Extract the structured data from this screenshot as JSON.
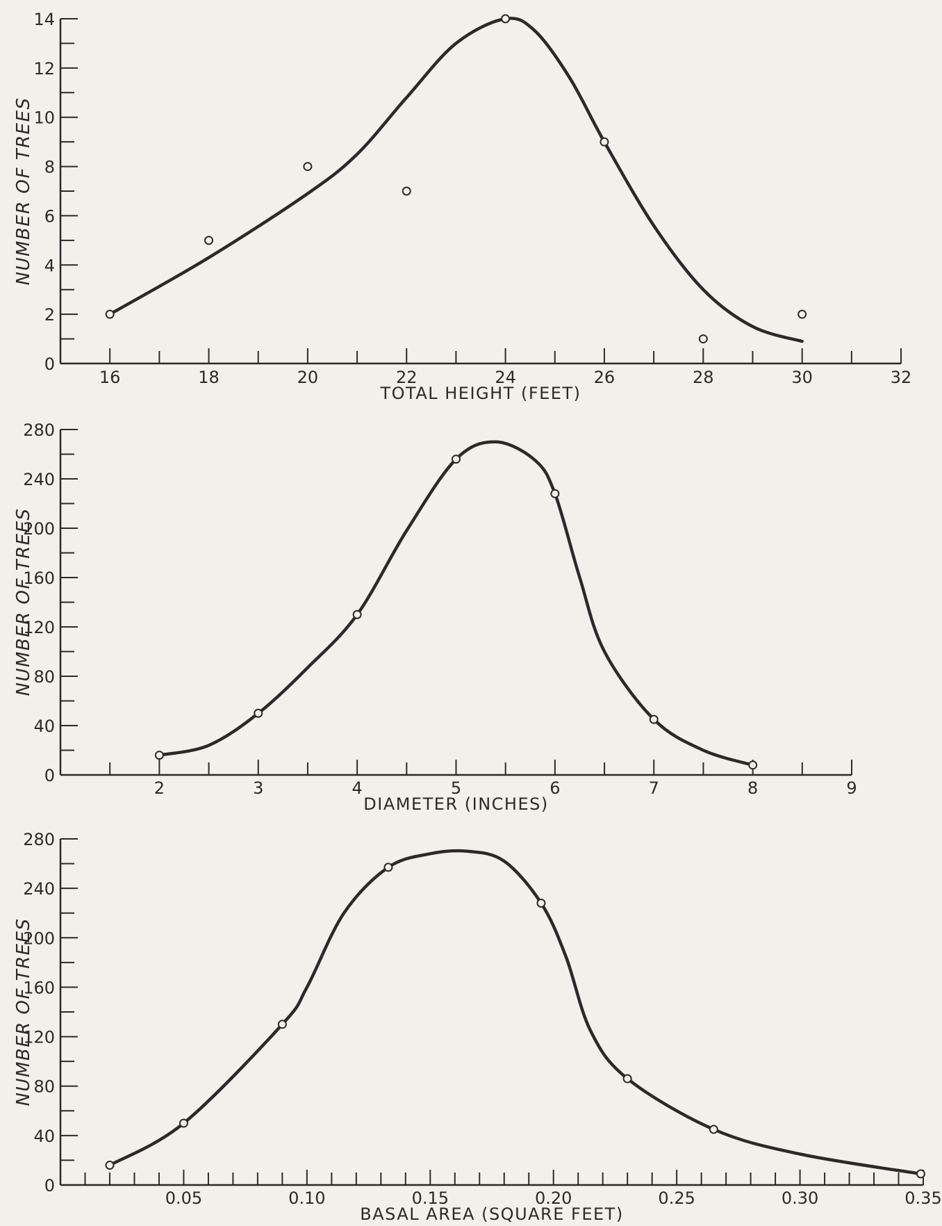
{
  "chart_data": [
    {
      "type": "scatter",
      "xlabel": "TOTAL HEIGHT (FEET)",
      "ylabel": "NUMBER OF TREES",
      "xlim": [
        15,
        32
      ],
      "ylim": [
        0,
        14
      ],
      "x_ticks": [
        16,
        18,
        20,
        22,
        24,
        26,
        28,
        30,
        32
      ],
      "x_tick_labels": [
        "16",
        "18",
        "20",
        "22",
        "24",
        "26",
        "28",
        "30",
        "32"
      ],
      "x_minor_step": 1,
      "y_ticks": [
        0,
        2,
        4,
        6,
        8,
        10,
        12,
        14
      ],
      "y_tick_labels": [
        "0",
        "2",
        "4",
        "6",
        "8",
        "10",
        "12",
        "14"
      ],
      "y_minor_step": 1,
      "grid": false,
      "series": [
        {
          "points": [
            {
              "x": 16,
              "y": 2
            },
            {
              "x": 18,
              "y": 5
            },
            {
              "x": 20,
              "y": 8
            },
            {
              "x": 22,
              "y": 7
            },
            {
              "x": 24,
              "y": 14
            },
            {
              "x": 26,
              "y": 9
            },
            {
              "x": 28,
              "y": 1
            },
            {
              "x": 30,
              "y": 2
            }
          ],
          "curve": [
            {
              "x": 16,
              "y": 2
            },
            {
              "x": 18,
              "y": 4.3
            },
            {
              "x": 20,
              "y": 6.9
            },
            {
              "x": 21,
              "y": 8.5
            },
            {
              "x": 22,
              "y": 10.8
            },
            {
              "x": 23,
              "y": 13
            },
            {
              "x": 24,
              "y": 14
            },
            {
              "x": 24.6,
              "y": 13.5
            },
            {
              "x": 25.3,
              "y": 11.6
            },
            {
              "x": 26,
              "y": 9
            },
            {
              "x": 27,
              "y": 5.6
            },
            {
              "x": 28,
              "y": 3
            },
            {
              "x": 29,
              "y": 1.5
            },
            {
              "x": 30,
              "y": 0.9
            }
          ]
        }
      ]
    },
    {
      "type": "scatter",
      "xlabel": "DIAMETER (INCHES)",
      "ylabel": "NUMBER OF TREES",
      "xlim": [
        1,
        9
      ],
      "ylim": [
        0,
        280
      ],
      "x_ticks": [
        2,
        3,
        4,
        5,
        6,
        7,
        8,
        9
      ],
      "x_tick_labels": [
        "2",
        "3",
        "4",
        "5",
        "6",
        "7",
        "8",
        "9"
      ],
      "x_minor_step": 0.5,
      "y_ticks": [
        0,
        40,
        80,
        120,
        160,
        200,
        240,
        280
      ],
      "y_tick_labels": [
        "0",
        "40",
        "80",
        "120",
        "160",
        "200",
        "240",
        "280"
      ],
      "y_minor_step": 20,
      "grid": false,
      "series": [
        {
          "points": [
            {
              "x": 2,
              "y": 16
            },
            {
              "x": 3,
              "y": 50
            },
            {
              "x": 4,
              "y": 130
            },
            {
              "x": 5,
              "y": 256
            },
            {
              "x": 6,
              "y": 228
            },
            {
              "x": 7,
              "y": 45
            },
            {
              "x": 8,
              "y": 8
            }
          ],
          "curve": [
            {
              "x": 2,
              "y": 16
            },
            {
              "x": 2.5,
              "y": 24
            },
            {
              "x": 3,
              "y": 50
            },
            {
              "x": 3.5,
              "y": 87
            },
            {
              "x": 4,
              "y": 130
            },
            {
              "x": 4.5,
              "y": 198
            },
            {
              "x": 5,
              "y": 256
            },
            {
              "x": 5.4,
              "y": 270
            },
            {
              "x": 5.8,
              "y": 255
            },
            {
              "x": 6,
              "y": 228
            },
            {
              "x": 6.25,
              "y": 160
            },
            {
              "x": 6.5,
              "y": 100
            },
            {
              "x": 7,
              "y": 45
            },
            {
              "x": 7.5,
              "y": 20
            },
            {
              "x": 8,
              "y": 8
            }
          ]
        }
      ]
    },
    {
      "type": "scatter",
      "xlabel": "BASAL AREA (SQUARE FEET)",
      "ylabel": "NUMBER OF TREES",
      "xlim": [
        0,
        0.35
      ],
      "ylim": [
        0,
        280
      ],
      "x_ticks": [
        0.05,
        0.1,
        0.15,
        0.2,
        0.25,
        0.3,
        0.35
      ],
      "x_tick_labels": [
        "0.05",
        "0.10",
        "0.15",
        "0.20",
        "0.25",
        "0.30",
        "0.35"
      ],
      "x_minor_step": 0.01,
      "y_ticks": [
        0,
        40,
        80,
        120,
        160,
        200,
        240,
        280
      ],
      "y_tick_labels": [
        "0",
        "40",
        "80",
        "120",
        "160",
        "200",
        "240",
        "280"
      ],
      "y_minor_step": 20,
      "grid": false,
      "series": [
        {
          "points": [
            {
              "x": 0.02,
              "y": 16
            },
            {
              "x": 0.05,
              "y": 50
            },
            {
              "x": 0.09,
              "y": 130
            },
            {
              "x": 0.133,
              "y": 257
            },
            {
              "x": 0.195,
              "y": 228
            },
            {
              "x": 0.23,
              "y": 86
            },
            {
              "x": 0.265,
              "y": 45
            },
            {
              "x": 0.349,
              "y": 9
            }
          ],
          "curve": [
            {
              "x": 0.02,
              "y": 16
            },
            {
              "x": 0.05,
              "y": 50
            },
            {
              "x": 0.09,
              "y": 130
            },
            {
              "x": 0.1,
              "y": 160
            },
            {
              "x": 0.115,
              "y": 220
            },
            {
              "x": 0.133,
              "y": 257
            },
            {
              "x": 0.15,
              "y": 268
            },
            {
              "x": 0.165,
              "y": 270
            },
            {
              "x": 0.18,
              "y": 262
            },
            {
              "x": 0.195,
              "y": 228
            },
            {
              "x": 0.205,
              "y": 185
            },
            {
              "x": 0.215,
              "y": 125
            },
            {
              "x": 0.23,
              "y": 86
            },
            {
              "x": 0.265,
              "y": 45
            },
            {
              "x": 0.3,
              "y": 25
            },
            {
              "x": 0.349,
              "y": 9
            }
          ]
        }
      ]
    }
  ]
}
